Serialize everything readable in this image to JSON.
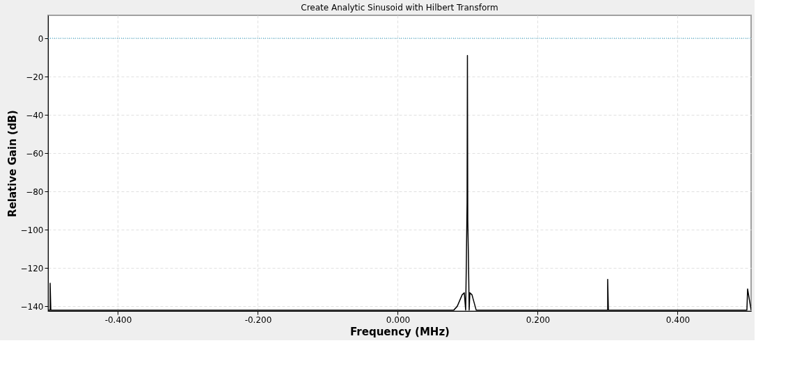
{
  "chart_data": {
    "type": "line",
    "title": "Create Analytic Sinusoid with Hilbert Transform",
    "xlabel": "Frequency (MHz)",
    "ylabel": "Relative Gain (dB)",
    "xlim": [
      -0.5,
      0.505
    ],
    "ylim": [
      -142.5,
      12
    ],
    "xticks": [
      {
        "value": -0.4,
        "label": "-0.400"
      },
      {
        "value": -0.2,
        "label": "-0.200"
      },
      {
        "value": 0,
        "label": "0.000"
      },
      {
        "value": 0.2,
        "label": "0.200"
      },
      {
        "value": 0.4,
        "label": "0.400"
      }
    ],
    "yticks": [
      -140,
      -120,
      -100,
      -80,
      -60,
      -40,
      -20,
      0
    ],
    "grid": true,
    "line_style": "solid",
    "series": [
      {
        "color": "#000000",
        "x": [
          -0.5,
          -0.497,
          -0.497,
          -0.496,
          0.08,
          0.085,
          0.092,
          0.095,
          0.097,
          0.098,
          0.099,
          0.0995,
          0.1,
          0.101,
          0.102,
          0.103,
          0.106,
          0.112,
          0.3,
          0.3,
          0.301,
          0.499,
          0.5,
          0.505
        ],
        "values": [
          -142,
          -142,
          -128,
          -142,
          -142,
          -140,
          -134,
          -133,
          -142,
          -116,
          -86,
          -9,
          -95,
          -116,
          -142,
          -133,
          -134,
          -142,
          -142,
          -126,
          -142,
          -142,
          -131,
          -142
        ]
      },
      {
        "color": "#1a9bc4",
        "line_style": "dotted",
        "x": [
          -0.5,
          0.505
        ],
        "values": [
          0,
          0
        ]
      }
    ]
  }
}
